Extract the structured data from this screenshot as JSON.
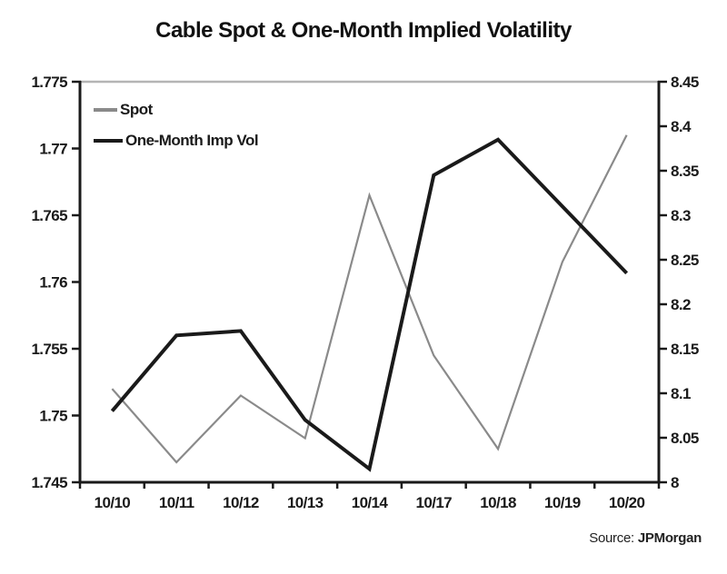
{
  "title": "Cable Spot & One-Month Implied Volatility",
  "source": {
    "label": "Source:",
    "value": "JPMorgan"
  },
  "colors": {
    "spot_line": "#8a8a8a",
    "impvol_line": "#1a1a1a",
    "axis": "#1a1a1a",
    "top_border": "#b5b5b5",
    "background": "#ffffff"
  },
  "chart_data": {
    "type": "line",
    "title": "Cable Spot & One-Month Implied Volatility",
    "categories": [
      "10/10",
      "10/11",
      "10/12",
      "10/13",
      "10/14",
      "10/17",
      "10/18",
      "10/19",
      "10/20"
    ],
    "series": [
      {
        "name": "Spot",
        "axis": "left",
        "color": "#8a8a8a",
        "stroke_width": 2.2,
        "values": [
          1.752,
          1.7465,
          1.7515,
          1.7483,
          1.7665,
          1.7545,
          1.7475,
          1.7615,
          1.771
        ]
      },
      {
        "name": "One-Month Imp Vol",
        "axis": "right",
        "color": "#1a1a1a",
        "stroke_width": 4,
        "values": [
          8.08,
          8.165,
          8.17,
          8.07,
          8.015,
          8.345,
          8.385,
          8.31,
          8.235
        ]
      }
    ],
    "left_axis": {
      "min": 1.745,
      "max": 1.775,
      "step": 0.005,
      "tick_labels": [
        "1.775",
        "1.77",
        "1.765",
        "1.76",
        "1.755",
        "1.75",
        "1.745"
      ]
    },
    "right_axis": {
      "min": 8,
      "max": 8.45,
      "step": 0.05,
      "tick_labels": [
        "8.45",
        "8.4",
        "8.35",
        "8.3",
        "8.25",
        "8.2",
        "8.15",
        "8.1",
        "8.05",
        "8"
      ]
    },
    "x_axis": {
      "labels_between_ticks": true
    },
    "legend_position": "top-left",
    "grid": false
  }
}
